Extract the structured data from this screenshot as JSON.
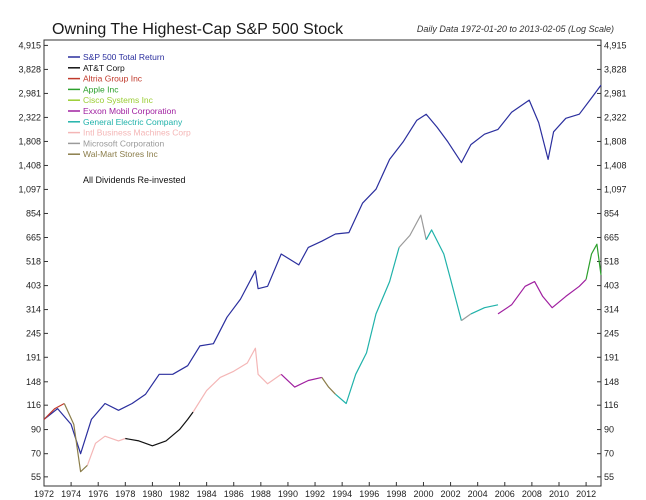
{
  "header": {
    "title": "Owning The Highest-Cap S&P 500 Stock",
    "subtitle": "Daily Data 1972-01-20 to 2013-02-05 (Log Scale)"
  },
  "chart_data": {
    "type": "line",
    "scale": "log",
    "title": "Owning The Highest-Cap S&P 500 Stock",
    "subtitle": "Daily Data 1972-01-20 to 2013-02-05 (Log Scale)",
    "annotation": "All Dividends Re-invested",
    "ylim": [
      50,
      5200
    ],
    "xlim": [
      1972.0,
      2013.1
    ],
    "y_ticks": [
      4915,
      3828,
      2981,
      2322,
      1808,
      1408,
      1097,
      854,
      665,
      518,
      403,
      314,
      245,
      191,
      148,
      116,
      90,
      70,
      55
    ],
    "x_ticks": [
      1972,
      1974,
      1976,
      1978,
      1980,
      1982,
      1984,
      1986,
      1988,
      1990,
      1992,
      1994,
      1996,
      1998,
      2000,
      2002,
      2004,
      2006,
      2008,
      2010,
      2012
    ],
    "legend": [
      {
        "name": "S&P 500 Total Return",
        "color": "#2b2f9e"
      },
      {
        "name": "AT&T Corp",
        "color": "#111111"
      },
      {
        "name": "Altria Group Inc",
        "color": "#c0392b"
      },
      {
        "name": "Apple Inc",
        "color": "#2ca02c"
      },
      {
        "name": "Cisco Systems Inc",
        "color": "#9acd32"
      },
      {
        "name": "Exxon Mobil Corporation",
        "color": "#a020a0"
      },
      {
        "name": "General Electric Company",
        "color": "#20b2aa"
      },
      {
        "name": "Intl Business Machines Corp",
        "color": "#f4b6b6"
      },
      {
        "name": "Microsoft Corporation",
        "color": "#9a9a9a"
      },
      {
        "name": "Wal-Mart Stores Inc",
        "color": "#8b7d4a"
      }
    ],
    "series": [
      {
        "name": "S&P 500 Total Return",
        "color": "#2b2f9e",
        "x": [
          1972.0,
          1973.0,
          1974.0,
          1974.7,
          1975.5,
          1976.5,
          1977.5,
          1978.5,
          1979.5,
          1980.5,
          1981.5,
          1982.6,
          1983.5,
          1984.5,
          1985.5,
          1986.5,
          1987.6,
          1987.8,
          1988.5,
          1989.5,
          1990.8,
          1991.5,
          1992.5,
          1993.5,
          1994.5,
          1995.5,
          1996.5,
          1997.5,
          1998.5,
          1999.5,
          2000.2,
          2001.0,
          2001.8,
          2002.8,
          2003.5,
          2004.5,
          2005.5,
          2006.5,
          2007.8,
          2008.5,
          2009.2,
          2009.6,
          2010.5,
          2011.5,
          2012.5,
          2013.1
        ],
        "y": [
          100,
          112,
          95,
          70,
          100,
          118,
          110,
          118,
          130,
          160,
          160,
          175,
          215,
          220,
          290,
          350,
          470,
          390,
          400,
          560,
          500,
          600,
          640,
          690,
          700,
          950,
          1100,
          1500,
          1800,
          2250,
          2400,
          2100,
          1800,
          1450,
          1750,
          1950,
          2050,
          2450,
          2780,
          2200,
          1500,
          2000,
          2300,
          2400,
          2900,
          3250
        ]
      },
      {
        "name": "Altria Group Inc",
        "color": "#c0392b",
        "x": [
          1972.0,
          1972.8,
          1973.5
        ],
        "y": [
          100,
          112,
          118
        ]
      },
      {
        "name": "Wal-Mart Stores Inc",
        "color": "#8b7d4a",
        "x": [
          1973.5,
          1974.2,
          1974.7,
          1975.2
        ],
        "y": [
          118,
          95,
          58,
          62
        ]
      },
      {
        "name": "Intl Business Machines Corp",
        "color": "#f4b6b6",
        "x": [
          1975.2,
          1975.8,
          1976.5,
          1977.5,
          1978.0
        ],
        "y": [
          62,
          78,
          84,
          80,
          82
        ]
      },
      {
        "name": "AT&T Corp",
        "color": "#111111",
        "x": [
          1978.0,
          1979.0,
          1980.0,
          1981.0,
          1982.0,
          1982.6,
          1983.0
        ],
        "y": [
          82,
          80,
          76,
          80,
          90,
          100,
          108
        ]
      },
      {
        "name": "Intl Business Machines Corp",
        "color": "#f4b6b6",
        "x": [
          1983.0,
          1984.0,
          1985.0,
          1986.0,
          1987.0,
          1987.6,
          1987.8,
          1988.5,
          1989.5
        ],
        "y": [
          108,
          135,
          155,
          165,
          180,
          210,
          160,
          145,
          160
        ]
      },
      {
        "name": "Exxon Mobil Corporation",
        "color": "#a020a0",
        "x": [
          1989.5,
          1990.5,
          1991.5,
          1992.5
        ],
        "y": [
          160,
          140,
          150,
          155
        ]
      },
      {
        "name": "Wal-Mart Stores Inc",
        "color": "#8b7d4a",
        "x": [
          1992.5,
          1993.0,
          1993.5
        ],
        "y": [
          155,
          140,
          130
        ]
      },
      {
        "name": "General Electric Company",
        "color": "#20b2aa",
        "x": [
          1993.5,
          1994.3,
          1995.0,
          1995.8,
          1996.5,
          1997.5,
          1998.2
        ],
        "y": [
          130,
          118,
          160,
          200,
          300,
          420,
          600
        ]
      },
      {
        "name": "Microsoft Corporation",
        "color": "#9a9a9a",
        "x": [
          1998.2,
          1999.0,
          1999.8,
          2000.2
        ],
        "y": [
          600,
          680,
          840,
          650
        ]
      },
      {
        "name": "General Electric Company",
        "color": "#20b2aa",
        "x": [
          2000.2,
          2000.6,
          2001.5,
          2002.0,
          2002.8
        ],
        "y": [
          650,
          720,
          560,
          430,
          280
        ]
      },
      {
        "name": "Microsoft Corporation",
        "color": "#9a9a9a",
        "x": [
          2002.8,
          2003.5
        ],
        "y": [
          280,
          300
        ]
      },
      {
        "name": "General Electric Company",
        "color": "#20b2aa",
        "x": [
          2003.5,
          2004.5,
          2005.5
        ],
        "y": [
          300,
          320,
          330
        ]
      },
      {
        "name": "Exxon Mobil Corporation",
        "color": "#a020a0",
        "x": [
          2005.5,
          2006.5,
          2007.5,
          2008.2,
          2008.8,
          2009.5,
          2010.5,
          2011.5,
          2012.0
        ],
        "y": [
          300,
          330,
          400,
          420,
          360,
          320,
          360,
          400,
          430
        ]
      },
      {
        "name": "Apple Inc",
        "color": "#2ca02c",
        "x": [
          2012.0,
          2012.4,
          2012.8,
          2013.1
        ],
        "y": [
          430,
          560,
          620,
          450
        ]
      }
    ]
  }
}
